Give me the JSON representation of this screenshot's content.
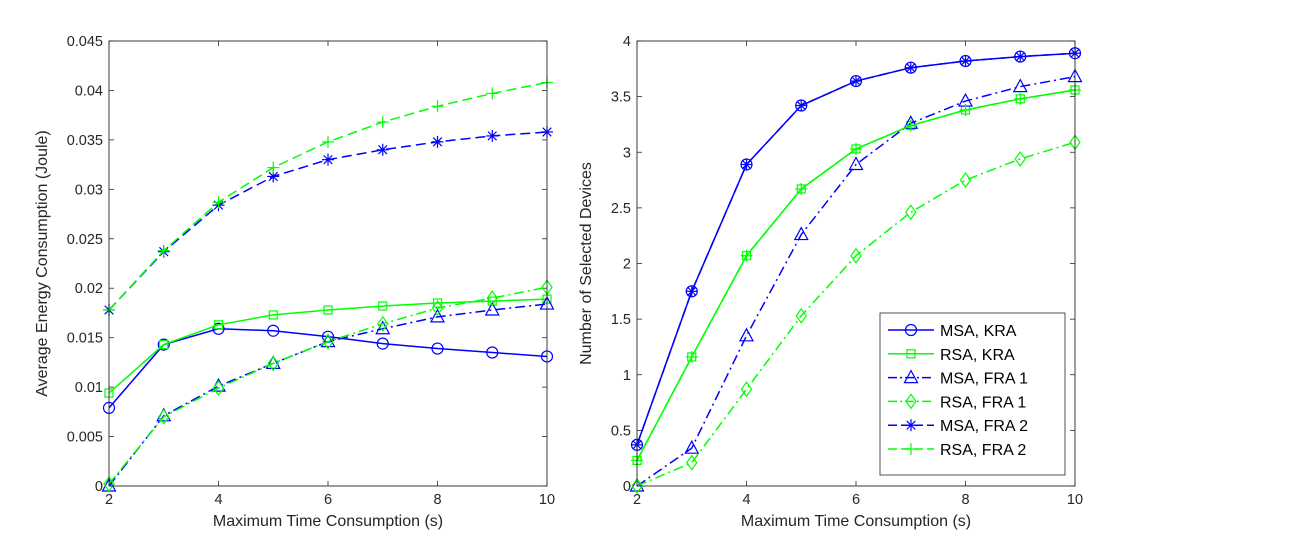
{
  "colors": {
    "blue": "#0000ff",
    "green": "#00ff00"
  },
  "chart_data": [
    {
      "type": "line",
      "title": "",
      "xlabel": "Maximum Time Consumption (s)",
      "ylabel": "Average Energy Consumption (Joule)",
      "xlim": [
        2,
        10
      ],
      "ylim": [
        0,
        0.045
      ],
      "xticks": [
        2,
        4,
        6,
        8,
        10
      ],
      "xtick_labels": [
        "2",
        "4",
        "6",
        "8",
        "10"
      ],
      "yticks": [
        0,
        0.005,
        0.01,
        0.015,
        0.02,
        0.025,
        0.03,
        0.035,
        0.04,
        0.045
      ],
      "ytick_labels": [
        "0",
        "0.005",
        "0.01",
        "0.015",
        "0.02",
        "0.025",
        "0.03",
        "0.035",
        "0.04",
        "0.045"
      ],
      "x": [
        2,
        3,
        4,
        5,
        6,
        7,
        8,
        9,
        10
      ],
      "legend": false,
      "series": [
        {
          "name": "MSA, KRA",
          "color": "blue",
          "marker": "circle",
          "dash": "solid",
          "values": [
            0.0079,
            0.0143,
            0.0159,
            0.0157,
            0.0151,
            0.0144,
            0.0139,
            0.0135,
            0.0131
          ]
        },
        {
          "name": "RSA, KRA",
          "color": "green",
          "marker": "square",
          "dash": "solid",
          "values": [
            0.0094,
            0.0143,
            0.0163,
            0.0173,
            0.0178,
            0.0182,
            0.0185,
            0.0187,
            0.0189
          ]
        },
        {
          "name": "MSA, FRA 1",
          "color": "blue",
          "marker": "triangle",
          "dash": "dashdot",
          "values": [
            0.0,
            0.0071,
            0.0101,
            0.0124,
            0.0146,
            0.0159,
            0.0171,
            0.0178,
            0.0184
          ]
        },
        {
          "name": "RSA, FRA 1",
          "color": "green",
          "marker": "diamond",
          "dash": "dashdot",
          "values": [
            0.0002,
            0.007,
            0.0099,
            0.0124,
            0.0146,
            0.0164,
            0.018,
            0.019,
            0.0201
          ]
        },
        {
          "name": "MSA, FRA 2",
          "color": "blue",
          "marker": "asterisk",
          "dash": "dashed",
          "values": [
            0.0178,
            0.0237,
            0.0284,
            0.0313,
            0.033,
            0.034,
            0.0348,
            0.0354,
            0.0358
          ]
        },
        {
          "name": "RSA, FRA 2",
          "color": "green",
          "marker": "plus",
          "dash": "dashed",
          "values": [
            0.0178,
            0.0238,
            0.0287,
            0.0322,
            0.0348,
            0.0368,
            0.0384,
            0.0397,
            0.0408
          ]
        }
      ]
    },
    {
      "type": "line",
      "title": "",
      "xlabel": "Maximum Time Consumption (s)",
      "ylabel": "Number of Selected Devices",
      "xlim": [
        2,
        10
      ],
      "ylim": [
        0,
        4
      ],
      "xticks": [
        2,
        4,
        6,
        8,
        10
      ],
      "xtick_labels": [
        "2",
        "4",
        "6",
        "8",
        "10"
      ],
      "yticks": [
        0,
        0.5,
        1,
        1.5,
        2,
        2.5,
        3,
        3.5,
        4
      ],
      "ytick_labels": [
        "0",
        "0.5",
        "1",
        "1.5",
        "2",
        "2.5",
        "3",
        "3.5",
        "4"
      ],
      "x": [
        2,
        3,
        4,
        5,
        6,
        7,
        8,
        9,
        10
      ],
      "legend": true,
      "legend_position": "bottom-right",
      "series": [
        {
          "name": "MSA, KRA",
          "color": "blue",
          "marker": "circle",
          "dash": "solid",
          "values": [
            0.37,
            1.75,
            2.89,
            3.42,
            3.64,
            3.76,
            3.82,
            3.86,
            3.89
          ]
        },
        {
          "name": "RSA, KRA",
          "color": "green",
          "marker": "square",
          "dash": "solid",
          "values": [
            0.23,
            1.16,
            2.07,
            2.67,
            3.03,
            3.24,
            3.38,
            3.48,
            3.56
          ]
        },
        {
          "name": "MSA, FRA 1",
          "color": "blue",
          "marker": "triangle",
          "dash": "dashdot",
          "values": [
            0.0,
            0.34,
            1.35,
            2.26,
            2.89,
            3.26,
            3.46,
            3.59,
            3.68
          ]
        },
        {
          "name": "RSA, FRA 1",
          "color": "green",
          "marker": "diamond",
          "dash": "dashdot",
          "values": [
            0.0,
            0.21,
            0.87,
            1.53,
            2.07,
            2.46,
            2.75,
            2.94,
            3.09
          ]
        },
        {
          "name": "MSA, FRA 2",
          "color": "blue",
          "marker": "asterisk",
          "dash": "dashed",
          "values": [
            0.37,
            1.75,
            2.89,
            3.42,
            3.64,
            3.76,
            3.82,
            3.86,
            3.89
          ]
        },
        {
          "name": "RSA, FRA 2",
          "color": "green",
          "marker": "plus",
          "dash": "dashed",
          "values": [
            0.23,
            1.16,
            2.07,
            2.67,
            3.03,
            3.24,
            3.38,
            3.48,
            3.56
          ]
        }
      ]
    }
  ]
}
